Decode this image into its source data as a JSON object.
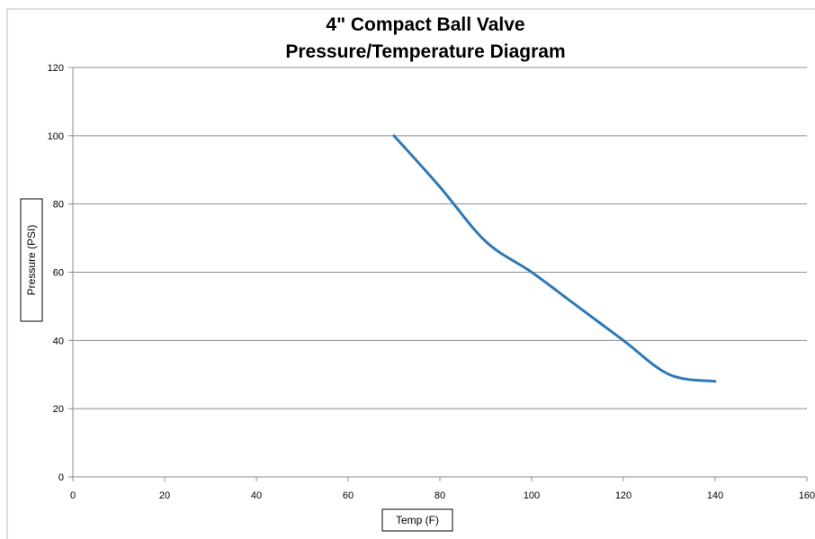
{
  "chart_data": {
    "type": "line",
    "title": "4\" Compact Ball Valve",
    "subtitle": "Pressure/Temperature Diagram",
    "xlabel": "Temp (F)",
    "ylabel": "Pressure (PSI)",
    "xlim": [
      0,
      160
    ],
    "ylim": [
      0,
      120
    ],
    "x_ticks": [
      0,
      20,
      40,
      60,
      80,
      100,
      120,
      140,
      160
    ],
    "y_ticks": [
      0,
      20,
      40,
      60,
      80,
      100,
      120
    ],
    "grid": "horizontal",
    "legend": "none",
    "series": [
      {
        "color": "#2e7ab6",
        "x": [
          70,
          80,
          90,
          100,
          110,
          120,
          130,
          140
        ],
        "y": [
          100,
          85,
          69,
          60,
          50,
          40,
          30,
          28
        ]
      }
    ]
  }
}
